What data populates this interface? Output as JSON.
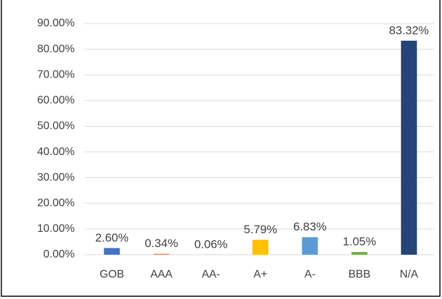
{
  "chart_data": {
    "type": "bar",
    "categories": [
      "GOB",
      "AAA",
      "AA-",
      "A+",
      "A-",
      "BBB",
      "N/A"
    ],
    "values": [
      2.6,
      0.34,
      0.06,
      5.79,
      6.83,
      1.05,
      83.32
    ],
    "value_labels": [
      "2.60%",
      "0.34%",
      "0.06%",
      "5.79%",
      "6.83%",
      "1.05%",
      "83.32%"
    ],
    "colors": [
      "#4472c4",
      "#ed7d31",
      "#a5a5a5",
      "#ffc000",
      "#5b9bd5",
      "#70ad47",
      "#264478"
    ],
    "ylim": [
      0,
      90
    ],
    "yticks": [
      {
        "value": 0,
        "label": "0.00%"
      },
      {
        "value": 10,
        "label": "10.00%"
      },
      {
        "value": 20,
        "label": "20.00%"
      },
      {
        "value": 30,
        "label": "30.00%"
      },
      {
        "value": 40,
        "label": "40.00%"
      },
      {
        "value": 50,
        "label": "50.00%"
      },
      {
        "value": 60,
        "label": "60.00%"
      },
      {
        "value": 70,
        "label": "70.00%"
      },
      {
        "value": 80,
        "label": "80.00%"
      },
      {
        "value": 90,
        "label": "90.00%"
      }
    ],
    "grid": true
  }
}
